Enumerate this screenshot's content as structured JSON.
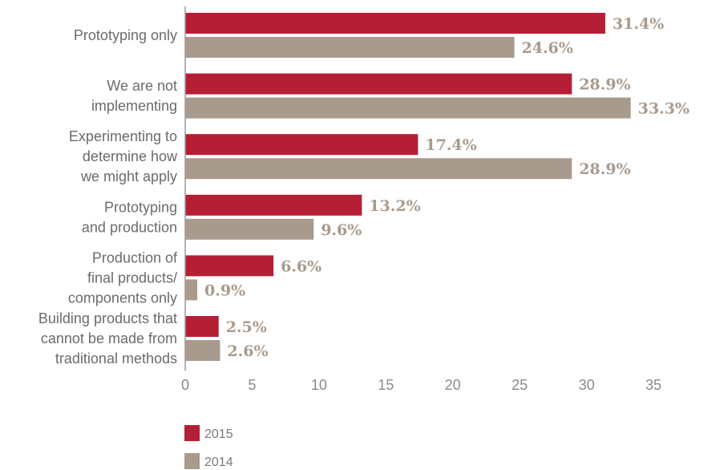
{
  "chart_data": {
    "type": "bar",
    "orientation": "horizontal",
    "categories": [
      [
        "Prototyping only"
      ],
      [
        "We are not",
        "implementing"
      ],
      [
        "Experimenting to",
        "determine how",
        "we might apply"
      ],
      [
        "Prototyping",
        "and production"
      ],
      [
        "Production of",
        "final products/",
        "components only"
      ],
      [
        "Building products that",
        "cannot be made from",
        "traditional methods"
      ]
    ],
    "series": [
      {
        "name": "2015",
        "color": "#b51f35",
        "values": [
          31.4,
          28.9,
          17.4,
          13.2,
          6.6,
          2.5
        ],
        "labels": [
          "31.4%",
          "28.9%",
          "17.4%",
          "13.2%",
          "6.6%",
          "2.5%"
        ]
      },
      {
        "name": "2014",
        "color": "#a89a8d",
        "values": [
          24.6,
          33.3,
          28.9,
          9.6,
          0.9,
          2.6
        ],
        "labels": [
          "24.6%",
          "33.3%",
          "28.9%",
          "9.6%",
          "0.9%",
          "2.6%"
        ]
      }
    ],
    "xlim": [
      0,
      35
    ],
    "xticks": [
      0,
      5,
      10,
      15,
      20,
      25,
      30,
      35
    ],
    "xtick_labels": [
      "0",
      "5",
      "10",
      "15",
      "20",
      "25",
      "30",
      "35"
    ],
    "grid": false,
    "legend_position": "bottom-left",
    "title": "",
    "xlabel": "",
    "ylabel": ""
  }
}
